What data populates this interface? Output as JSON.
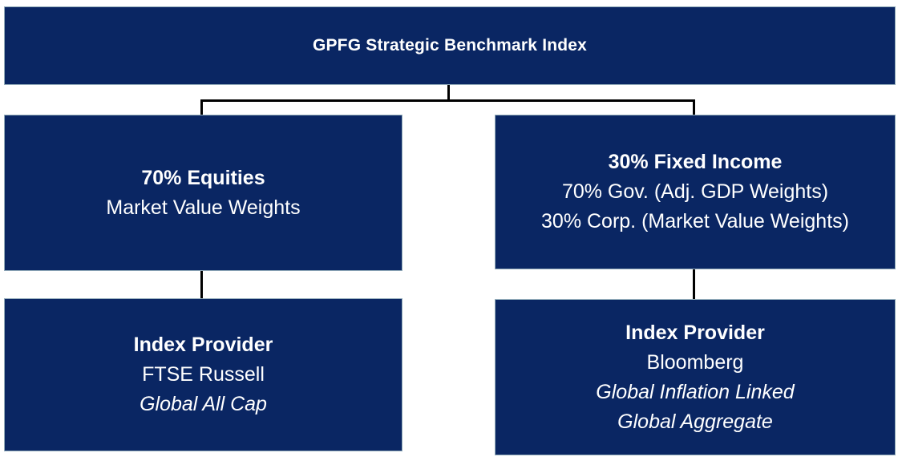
{
  "diagram_title": "GPFG Strategic Benchmark Index",
  "root": {
    "title": "GPFG Strategic Benchmark Index"
  },
  "branches": [
    {
      "id": "equities",
      "allocation": {
        "title": "70% Equities",
        "lines": [
          "Market Value Weights"
        ]
      },
      "provider": {
        "label": "Index Provider",
        "name": "FTSE Russell",
        "indices": [
          "Global All Cap"
        ]
      }
    },
    {
      "id": "fixed-income",
      "allocation": {
        "title": "30% Fixed Income",
        "lines": [
          "70% Gov. (Adj. GDP Weights)",
          "30% Corp. (Market Value Weights)"
        ]
      },
      "provider": {
        "label": "Index Provider",
        "name": "Bloomberg",
        "indices": [
          "Global Inflation Linked",
          "Global Aggregate"
        ]
      }
    }
  ],
  "colors": {
    "box_bg": "#0a2663",
    "box_border": "#93acba",
    "box_text": "#ffffff",
    "connector": "#000000",
    "page_bg": "#ffffff"
  }
}
